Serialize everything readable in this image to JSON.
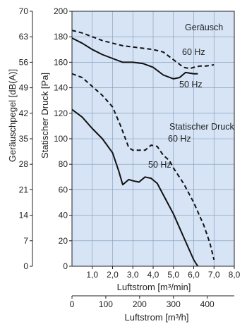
{
  "chart_data": {
    "type": "line",
    "xlabel": "Luftstrom [m³/min]",
    "xlabel_secondary": "Luftstrom [m³/h]",
    "ylabel_left": "Geräuschpegel [dB(A)]",
    "ylabel_right": "Statischer Druck [Pa]",
    "xlim": [
      0,
      8
    ],
    "ylim": [
      0,
      200
    ],
    "xlim_secondary": [
      0,
      480
    ],
    "ylim_left": [
      0,
      70
    ],
    "x_tick_labels": [
      "1,0",
      "2,0",
      "3,0",
      "4,0",
      "5,0",
      "6,0",
      "7,0",
      "8,0"
    ],
    "x_secondary_ticks": [
      0,
      100,
      200,
      300,
      400
    ],
    "x_secondary_tick_labels": [
      "0",
      "100",
      "200",
      "300",
      "400"
    ],
    "y_ticks": [
      0,
      20,
      40,
      60,
      80,
      100,
      120,
      140,
      160,
      180,
      200
    ],
    "y_tick_labels": [
      "0",
      "20",
      "40",
      "60",
      "80",
      "100",
      "120",
      "140",
      "160",
      "180",
      "200"
    ],
    "y_left_ticks": [
      0,
      7,
      14,
      21,
      28,
      35,
      42,
      49,
      56,
      63,
      70
    ],
    "y_left_tick_labels": [
      "0",
      "7",
      "14",
      "21",
      "28",
      "35",
      "42",
      "49",
      "56",
      "63",
      "70"
    ],
    "grid": true,
    "background": "#d6e4f5",
    "line_color": "#111111",
    "annotations": {
      "noise_group": "Geräusch",
      "pressure_group": "Statischer Druck",
      "noise_60hz": "60 Hz",
      "noise_50hz": "50 Hz",
      "pressure_60hz": "60 Hz",
      "pressure_50hz": "50 Hz"
    },
    "series": [
      {
        "group": "Geräusch",
        "frequency": "60 Hz",
        "style": "dashed",
        "x": [
          0,
          0.5,
          1.0,
          1.5,
          2.0,
          2.5,
          3.0,
          3.5,
          4.0,
          4.5,
          5.0,
          5.5,
          5.8,
          6.0,
          6.3,
          6.6,
          7.0
        ],
        "y": [
          185,
          183,
          180,
          177,
          175,
          173,
          172,
          171,
          170,
          168,
          162,
          156,
          155,
          156,
          157,
          157,
          158
        ]
      },
      {
        "group": "Geräusch",
        "frequency": "50 Hz",
        "style": "solid",
        "x": [
          0,
          0.5,
          1.0,
          1.5,
          2.0,
          2.5,
          3.0,
          3.5,
          4.0,
          4.5,
          5.0,
          5.3,
          5.6,
          6.0,
          6.2
        ],
        "y": [
          179,
          175,
          170,
          166,
          163,
          160,
          160,
          159,
          156,
          150,
          147,
          148,
          152,
          151,
          151
        ]
      },
      {
        "group": "Statischer Druck",
        "frequency": "60 Hz",
        "style": "dashed",
        "x": [
          0,
          0.5,
          1.0,
          1.5,
          2.0,
          2.4,
          2.8,
          3.0,
          3.3,
          3.6,
          3.9,
          4.2,
          4.5,
          4.8,
          5.0,
          5.5,
          6.0,
          6.5,
          6.8,
          7.0
        ],
        "y": [
          151,
          148,
          141,
          134,
          125,
          110,
          93,
          91,
          91,
          91,
          95,
          94,
          87,
          83,
          77,
          65,
          50,
          32,
          18,
          5
        ]
      },
      {
        "group": "Statischer Druck",
        "frequency": "50 Hz",
        "style": "solid",
        "x": [
          0,
          0.5,
          1.0,
          1.5,
          2.0,
          2.3,
          2.5,
          2.8,
          3.0,
          3.3,
          3.6,
          3.9,
          4.2,
          4.5,
          5.0,
          5.5,
          6.0,
          6.2
        ],
        "y": [
          123,
          117,
          108,
          100,
          89,
          75,
          64,
          68,
          67,
          66,
          70,
          69,
          65,
          56,
          41,
          23,
          5,
          0
        ]
      }
    ]
  }
}
